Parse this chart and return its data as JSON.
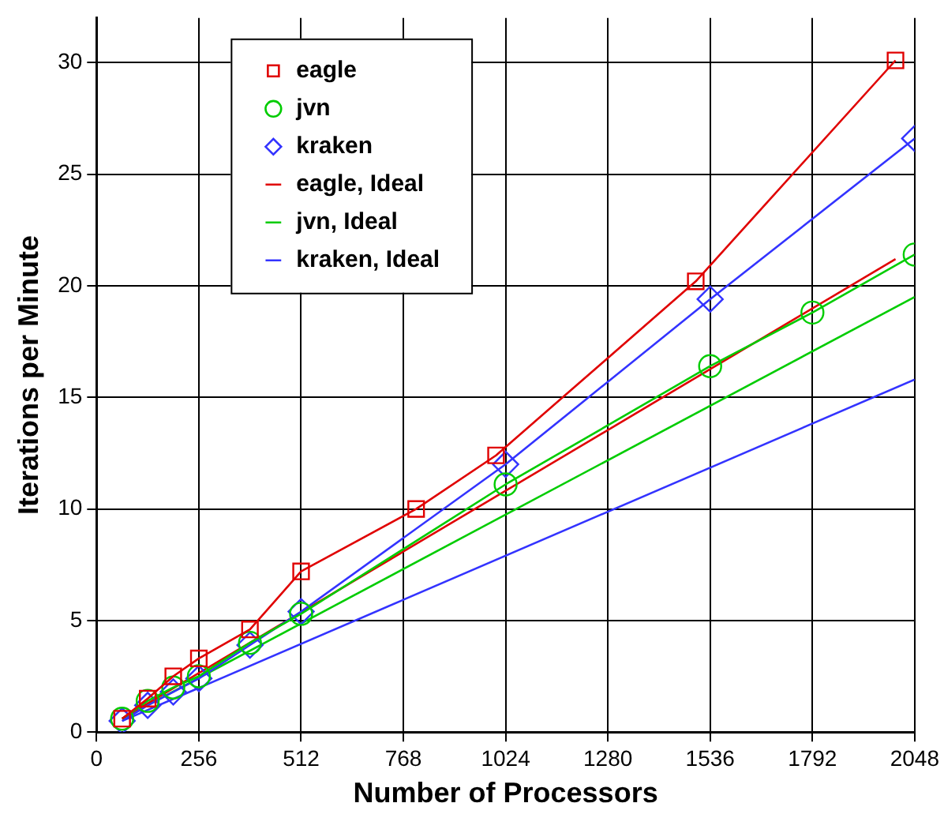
{
  "chart_data": {
    "type": "line",
    "xlabel": "Number of Processors",
    "ylabel": "Iterations per Minute",
    "xlim": [
      0,
      2048
    ],
    "ylim": [
      0,
      32
    ],
    "xticks": [
      0,
      256,
      512,
      768,
      1024,
      1280,
      1536,
      1792,
      2048
    ],
    "yticks": [
      0,
      5,
      10,
      15,
      20,
      25,
      30
    ],
    "grid": true,
    "legend": "top left",
    "line_style": "solid",
    "series": [
      {
        "name": "eagle",
        "color": "#e00000",
        "marker": "square",
        "x": [
          64,
          128,
          192,
          256,
          384,
          512,
          800,
          1000,
          1500,
          2000
        ],
        "values": [
          0.6,
          1.5,
          2.5,
          3.3,
          4.6,
          7.2,
          10.0,
          12.4,
          20.2,
          30.1
        ]
      },
      {
        "name": "jvn",
        "color": "#00cc00",
        "marker": "circle",
        "x": [
          64,
          128,
          192,
          256,
          384,
          512,
          1024,
          1536,
          1792,
          2048
        ],
        "values": [
          0.6,
          1.4,
          2.0,
          2.5,
          4.0,
          5.3,
          11.1,
          16.4,
          18.8,
          21.4
        ]
      },
      {
        "name": "kraken",
        "color": "#3333ff",
        "marker": "diamond",
        "x": [
          64,
          128,
          192,
          256,
          384,
          512,
          1024,
          1536,
          2048
        ],
        "values": [
          0.5,
          1.2,
          1.8,
          2.4,
          3.9,
          5.4,
          12.0,
          19.4,
          26.6
        ]
      },
      {
        "name": "eagle, Ideal",
        "color": "#e00000",
        "marker": "none",
        "x": [
          64,
          2000
        ],
        "values": [
          0.6,
          21.2
        ]
      },
      {
        "name": "jvn, Ideal",
        "color": "#00cc00",
        "marker": "none",
        "x": [
          64,
          2048
        ],
        "values": [
          0.6,
          19.5
        ]
      },
      {
        "name": "kraken, Ideal",
        "color": "#3333ff",
        "marker": "none",
        "x": [
          64,
          2048
        ],
        "values": [
          0.5,
          15.8
        ]
      }
    ]
  }
}
